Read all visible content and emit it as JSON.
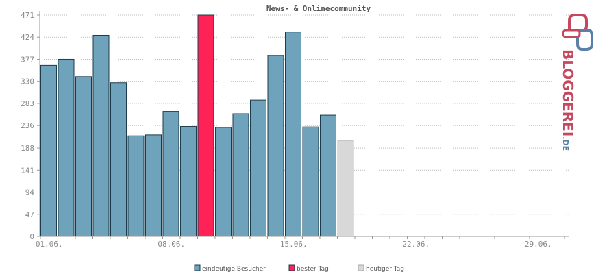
{
  "chart_data": {
    "type": "bar",
    "title": "News- & Onlinecommunity",
    "xlabel": "",
    "ylabel": "",
    "ylim": [
      0,
      471
    ],
    "yticks": [
      "0",
      "47",
      "94",
      "141",
      "188",
      "236",
      "283",
      "330",
      "377",
      "424",
      "471"
    ],
    "x_tick_labels": [
      {
        "day": 1,
        "label": "01.06."
      },
      {
        "day": 8,
        "label": "08.06."
      },
      {
        "day": 15,
        "label": "15.06."
      },
      {
        "day": 22,
        "label": "22.06."
      },
      {
        "day": 29,
        "label": "29.06."
      }
    ],
    "days_in_month": 30,
    "grid": true,
    "legend_position": "bottom",
    "series": [
      {
        "name": "eindeutige Besucher",
        "color": "#6fa3bb",
        "points": [
          {
            "day": 1,
            "value": 364
          },
          {
            "day": 2,
            "value": 377
          },
          {
            "day": 3,
            "value": 340
          },
          {
            "day": 4,
            "value": 428
          },
          {
            "day": 5,
            "value": 327
          },
          {
            "day": 6,
            "value": 214
          },
          {
            "day": 7,
            "value": 216
          },
          {
            "day": 8,
            "value": 266
          },
          {
            "day": 9,
            "value": 234
          },
          {
            "day": 11,
            "value": 232
          },
          {
            "day": 12,
            "value": 261
          },
          {
            "day": 13,
            "value": 290
          },
          {
            "day": 14,
            "value": 385
          },
          {
            "day": 15,
            "value": 435
          },
          {
            "day": 16,
            "value": 233
          },
          {
            "day": 17,
            "value": 258
          }
        ]
      },
      {
        "name": "bester Tag",
        "color": "#ff2256",
        "points": [
          {
            "day": 10,
            "value": 471
          }
        ]
      },
      {
        "name": "heutiger Tag",
        "color": "#d8d8d8",
        "points": [
          {
            "day": 18,
            "value": 204
          }
        ]
      }
    ]
  },
  "logo": {
    "text": "BLOGGEREI",
    "suffix": ".DE",
    "color": "#c5485f",
    "suffix_color": "#5a7fa8"
  },
  "colors": {
    "grid": "#bbbbbb",
    "axis": "#999999",
    "bar_outline": "#1d3b4a"
  }
}
